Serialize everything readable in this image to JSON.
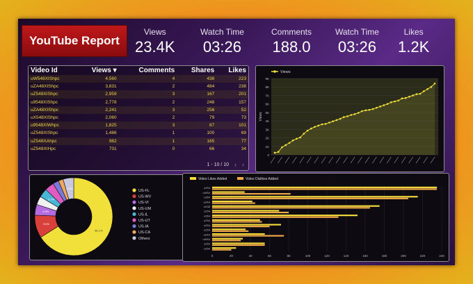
{
  "report_title": "YouTube Report",
  "kpis": [
    {
      "label": "Views",
      "value": "23.4K"
    },
    {
      "label": "Watch Time",
      "value": "03:26"
    },
    {
      "label": "Comments",
      "value": "188.0"
    },
    {
      "label": "Watch Time",
      "value": "03:26"
    },
    {
      "label": "Likes",
      "value": "1.2K"
    }
  ],
  "table": {
    "headers": [
      "Video Id",
      "Views ▾",
      "Comments",
      "Shares",
      "Likes"
    ],
    "rows": [
      [
        "uW548XIShpc",
        "4,560",
        "4",
        "438",
        "223"
      ],
      [
        "uZA48XIShpc",
        "3,831",
        "2",
        "484",
        "238"
      ],
      [
        "uZ548XIShpc",
        "2,959",
        "3",
        "167",
        "201"
      ],
      [
        "u9548XIShpc",
        "2,778",
        "2",
        "248",
        "157"
      ],
      [
        "uZA48XIShpc",
        "2,241",
        "3",
        "256",
        "52"
      ],
      [
        "uX548XIShpc",
        "2,060",
        "2",
        "79",
        "73"
      ],
      [
        "u9548XIWhpc",
        "1,825",
        "3",
        "87",
        "101"
      ],
      [
        "uZ548XIShpc",
        "1,486",
        "1",
        "100",
        "69"
      ],
      [
        "uZ548XAhpc",
        "982",
        "1",
        "165",
        "77"
      ],
      [
        "uZ548XIHpc",
        "731",
        "0",
        "66",
        "34"
      ]
    ],
    "pager": "1 - 10 / 10",
    "prev": "‹",
    "next": "›"
  },
  "chart_data": [
    {
      "type": "line",
      "series": [
        {
          "name": "Views",
          "color": "#f2e03a",
          "values": [
            250,
            350,
            900,
            1150,
            1400,
            1700,
            1900,
            2050,
            2500,
            2850,
            3100,
            3300,
            3450,
            3600,
            3650,
            3800,
            3950,
            4100,
            4250,
            4450,
            4550,
            4700,
            4800,
            4950,
            5150,
            5250,
            5300,
            5400,
            5550,
            5700,
            5850,
            6000,
            6200,
            6300,
            6400,
            6650,
            6700,
            6850,
            7000,
            7150,
            7200,
            7500,
            7750,
            8000,
            8400
          ]
        }
      ],
      "ylim": [
        0,
        9000
      ],
      "yticks": [
        "0",
        "1K",
        "2K",
        "3K",
        "4K",
        "5K",
        "6K",
        "7K",
        "8K",
        "9K"
      ],
      "ylabel": "Views"
    },
    {
      "type": "pie",
      "labels": [
        "US-FL",
        "US-WV",
        "US-VI",
        "US-UM",
        "US-IL",
        "US-UT",
        "US-IA",
        "US-CA",
        "Others"
      ],
      "values": [
        66.1,
        9.5,
        4.5,
        3.5,
        3.7,
        3.8,
        2.5,
        2.0,
        4.4
      ],
      "slice_labels": [
        "66.1%",
        "9.5%",
        "4.5%",
        "3.5%",
        "3.7%",
        "",
        "",
        "",
        "4.4%"
      ],
      "colors": [
        "#f2e03a",
        "#d9403a",
        "#b56be0",
        "#f0f0f0",
        "#4ab6d6",
        "#e05cc0",
        "#7a7ad8",
        "#f0a860",
        "#c8c8e0"
      ]
    },
    {
      "type": "bar",
      "orientation": "horizontal",
      "series": [
        {
          "name": "Video Likes Added",
          "color": "#f5dc3a",
          "values": [
            235,
            34,
            215,
            42,
            175,
            70,
            152,
            50,
            72,
            35,
            55,
            32,
            55,
            25
          ]
        },
        {
          "name": "Video Dislikes Added",
          "color": "#f0a848",
          "values": [
            235,
            82,
            205,
            45,
            165,
            80,
            132,
            52,
            60,
            38,
            75,
            30,
            55,
            20
          ]
        }
      ],
      "categories": [
        "uZ54",
        "uW54",
        "u954",
        "uZA4",
        "uX48",
        "uZ54",
        "u954",
        "uZ54",
        "uZ54",
        "uZ54",
        "uZA4",
        "uW54",
        "uZ54",
        "uZ54"
      ],
      "xlim": [
        0,
        240
      ],
      "xticks": [
        "0",
        "20",
        "40",
        "60",
        "80",
        "100",
        "120",
        "140",
        "160",
        "180",
        "200",
        "220",
        "240"
      ]
    }
  ]
}
